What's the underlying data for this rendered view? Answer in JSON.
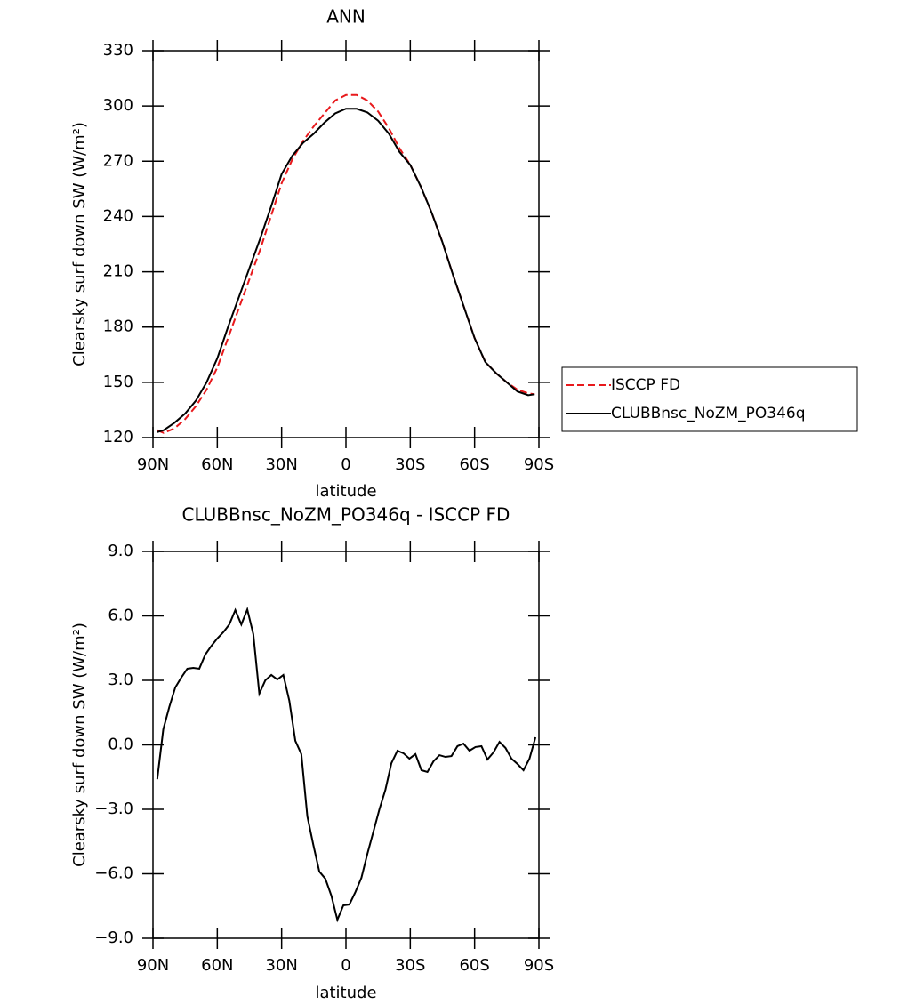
{
  "chart_data": [
    {
      "type": "line",
      "title": "ANN",
      "xlabel": "latitude",
      "ylabel": "Clearsky surf down SW (W/m²)",
      "x": [
        88,
        85,
        80,
        75,
        70,
        65,
        60,
        55,
        50,
        45,
        40,
        35,
        30,
        25,
        20,
        15,
        10,
        5,
        0,
        -5,
        -10,
        -15,
        -20,
        -25,
        -30,
        -35,
        -40,
        -45,
        -50,
        -55,
        -60,
        -65,
        -70,
        -75,
        -80,
        -85,
        -88
      ],
      "series": [
        {
          "name": "ISCCP FD",
          "color": "#e8191c",
          "dash": true,
          "values": [
            124,
            122.5,
            125,
            130,
            137,
            146,
            158,
            174,
            190,
            206,
            222,
            240,
            258,
            271,
            281,
            289,
            296,
            303,
            306,
            306,
            303,
            297,
            288,
            277,
            268,
            256,
            242,
            226,
            208,
            191,
            174,
            161,
            155,
            150,
            146,
            144,
            143.5
          ]
        },
        {
          "name": "CLUBBnsc_NoZM_PO346q",
          "color": "#000000",
          "dash": false,
          "values": [
            123,
            124,
            128,
            133,
            140,
            150,
            163,
            180,
            196,
            212,
            228,
            245,
            263,
            273,
            280,
            285,
            291,
            296,
            298.5,
            298.5,
            296.5,
            292,
            285,
            275,
            268,
            256,
            242,
            226,
            208,
            191,
            174,
            161,
            155,
            150,
            145,
            143,
            143.5
          ]
        }
      ],
      "xlim": [
        90,
        -90
      ],
      "xticks": [
        {
          "value": 90,
          "label": "90N"
        },
        {
          "value": 60,
          "label": "60N"
        },
        {
          "value": 30,
          "label": "30N"
        },
        0,
        {
          "value": -30,
          "label": "30S"
        },
        {
          "value": -60,
          "label": "60S"
        },
        {
          "value": -90,
          "label": "90S"
        }
      ],
      "ylim": [
        120,
        330
      ],
      "yticks": [
        120,
        150,
        180,
        210,
        240,
        270,
        300,
        330
      ],
      "legend": "right"
    },
    {
      "type": "line",
      "title": "CLUBBnsc_NoZM_PO346q - ISCCP FD",
      "xlabel": "latitude",
      "ylabel": "Clearsky surf down SW (W/m²)",
      "x": [
        88,
        85.2,
        82.4,
        79.6,
        76.8,
        74,
        71.2,
        68.4,
        65.6,
        62.8,
        60,
        57.2,
        54.4,
        51.6,
        48.8,
        46,
        43.2,
        40.4,
        37.6,
        34.8,
        32,
        29.2,
        26.4,
        23.6,
        20.8,
        18,
        15.2,
        12.4,
        9.6,
        6.8,
        4,
        1.2,
        -1.6,
        -4.4,
        -7.2,
        -10,
        -12.8,
        -15.6,
        -18.4,
        -21.2,
        -24,
        -26.8,
        -29.6,
        -32.4,
        -35.2,
        -38,
        -40.8,
        -43.6,
        -46.4,
        -49.2,
        -52,
        -54.8,
        -57.6,
        -60.4,
        -63.2,
        -66,
        -68.8,
        -71.6,
        -74.4,
        -77.2,
        -80,
        -82.8,
        -85.6,
        -88.4
      ],
      "series": [
        {
          "color": "#000000",
          "dash": false,
          "values": [
            -1.6,
            0.72,
            1.76,
            2.67,
            3.13,
            3.54,
            3.58,
            3.54,
            4.2,
            4.6,
            4.95,
            5.24,
            5.6,
            6.27,
            5.6,
            6.3,
            5.15,
            2.38,
            3.0,
            3.25,
            3.04,
            3.25,
            2.05,
            0.19,
            -0.43,
            -3.33,
            -4.66,
            -5.9,
            -6.23,
            -7.02,
            -8.14,
            -7.47,
            -7.43,
            -6.85,
            -6.19,
            -5.07,
            -4.04,
            -3.0,
            -2.09,
            -0.85,
            -0.27,
            -0.39,
            -0.64,
            -0.43,
            -1.18,
            -1.26,
            -0.77,
            -0.48,
            -0.56,
            -0.52,
            -0.06,
            0.06,
            -0.27,
            -0.1,
            -0.06,
            -0.68,
            -0.35,
            0.14,
            -0.14,
            -0.64,
            -0.89,
            -1.18,
            -0.64,
            0.35
          ]
        }
      ],
      "xlim": [
        90,
        -90
      ],
      "xticks": [
        {
          "value": 90,
          "label": "90N"
        },
        {
          "value": 60,
          "label": "60N"
        },
        {
          "value": 30,
          "label": "30N"
        },
        0,
        {
          "value": -30,
          "label": "30S"
        },
        {
          "value": -60,
          "label": "60S"
        },
        {
          "value": -90,
          "label": "90S"
        }
      ],
      "ylim": [
        -9,
        9
      ],
      "yticks": [
        {
          "value": -9,
          "label": "−9.0"
        },
        {
          "value": -6,
          "label": "−6.0"
        },
        {
          "value": -3,
          "label": "−3.0"
        },
        {
          "value": 0,
          "label": "0.0"
        },
        {
          "value": 3,
          "label": "3.0"
        },
        {
          "value": 6,
          "label": "6.0"
        },
        {
          "value": 9,
          "label": "9.0"
        }
      ]
    }
  ]
}
